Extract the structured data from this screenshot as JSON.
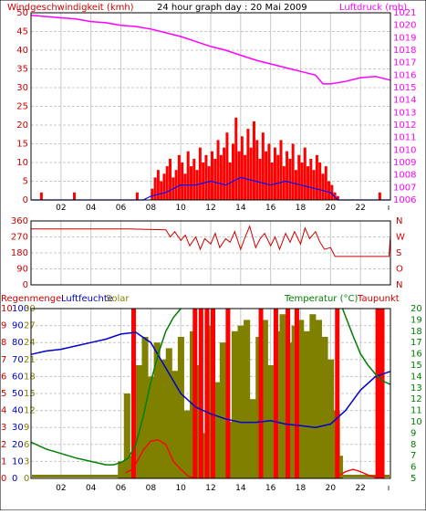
{
  "header": {
    "title_left": "Windgeschwindigkeit (kmh)",
    "title_center": "24 hour graph day : 20 Mai 2009",
    "title_right": "Luftdruck (mb)"
  },
  "middle_header": {},
  "bottom_header": {
    "regen": "Regenmenge",
    "feuchte": "Luftfeuchte",
    "solar": "Solar",
    "temp": "Temperatur (°C)",
    "taupunkt": "Taupunkt"
  },
  "colors": {
    "wind": "#ff0000",
    "gust_outline": "#0000ff",
    "pressure": "#ff00ff",
    "direction": "#cc0000",
    "rain": "#ff0000",
    "humidity": "#0000cc",
    "solar": "#808000",
    "temperature": "#008000",
    "dewpoint": "#ff0000",
    "grid": "#c8c8c8",
    "frame": "#000000"
  },
  "chart_data": [
    {
      "type": "bar",
      "name": "wind-pressure",
      "x_hours": [
        2,
        4,
        6,
        8,
        10,
        12,
        14,
        16,
        18,
        20,
        22
      ],
      "xtick_labels": [
        "02",
        "04",
        "06",
        "08",
        "10",
        "12",
        "14",
        "16",
        "18",
        "20",
        "22"
      ],
      "ylim_left": [
        0,
        50
      ],
      "yticks_left": [
        "0",
        "5",
        "10",
        "15",
        "20",
        "25",
        "30",
        "35",
        "40",
        "45",
        "50"
      ],
      "ylim_right": [
        1006,
        1021
      ],
      "yticks_right": [
        "1006",
        "1007",
        "1008",
        "1009",
        "1010",
        "1011",
        "1012",
        "1013",
        "1014",
        "1015",
        "1016",
        "1017",
        "1018",
        "1019",
        "1020",
        "1021"
      ],
      "pressure": {
        "hours": [
          0,
          1,
          2,
          3,
          4,
          5,
          6,
          7,
          8,
          9,
          10,
          11,
          12,
          13,
          14,
          15,
          16,
          17,
          18,
          19,
          19.5,
          20,
          21,
          22,
          23,
          24
        ],
        "values": [
          1020.8,
          1020.7,
          1020.6,
          1020.5,
          1020.3,
          1020.2,
          1020.0,
          1019.9,
          1019.7,
          1019.4,
          1019.1,
          1018.7,
          1018.3,
          1018.0,
          1017.6,
          1017.2,
          1016.9,
          1016.6,
          1016.3,
          1016.0,
          1015.3,
          1015.3,
          1015.5,
          1015.8,
          1015.9,
          1015.6
        ]
      },
      "wind_bars": {
        "hours": [
          0.6,
          2.8,
          7.0,
          8.0,
          8.2,
          8.4,
          8.6,
          8.8,
          9.0,
          9.2,
          9.4,
          9.6,
          9.8,
          10.0,
          10.2,
          10.4,
          10.6,
          10.8,
          11.0,
          11.2,
          11.4,
          11.6,
          11.8,
          12.0,
          12.2,
          12.4,
          12.6,
          12.8,
          13.0,
          13.2,
          13.4,
          13.6,
          13.8,
          14.0,
          14.2,
          14.4,
          14.6,
          14.8,
          15.0,
          15.2,
          15.4,
          15.6,
          15.8,
          16.0,
          16.2,
          16.4,
          16.6,
          16.8,
          17.0,
          17.2,
          17.4,
          17.6,
          17.8,
          18.0,
          18.2,
          18.4,
          18.6,
          18.8,
          19.0,
          19.2,
          19.4,
          19.6,
          19.8,
          20.0,
          20.2,
          20.4,
          23.2
        ],
        "values": [
          2,
          2,
          2,
          3,
          6,
          8,
          5,
          7,
          9,
          11,
          6,
          8,
          12,
          10,
          7,
          13,
          9,
          11,
          8,
          14,
          10,
          12,
          9,
          13,
          11,
          16,
          12,
          14,
          18,
          10,
          15,
          22,
          13,
          17,
          12,
          19,
          14,
          21,
          16,
          11,
          18,
          13,
          15,
          10,
          14,
          12,
          16,
          9,
          13,
          11,
          15,
          8,
          12,
          10,
          14,
          9,
          11,
          8,
          12,
          10,
          7,
          9,
          5,
          4,
          2,
          1,
          2
        ]
      },
      "gust_line": {
        "hours": [
          0,
          7.5,
          8,
          9,
          10,
          11,
          12,
          13,
          14,
          15,
          16,
          17,
          18,
          19,
          20,
          20.5,
          24
        ],
        "values": [
          0,
          0,
          1,
          2,
          4,
          4,
          5,
          4,
          6,
          5,
          4,
          5,
          4,
          3,
          2,
          0,
          0
        ]
      }
    },
    {
      "type": "line",
      "name": "wind-direction",
      "ylim": [
        0,
        360
      ],
      "yticks_left": [
        "0",
        "90",
        "180",
        "270",
        "360"
      ],
      "yticks_right": [
        "N",
        "O",
        "S",
        "W",
        "N"
      ],
      "hours": [
        0,
        6.5,
        9,
        9.3,
        9.6,
        10,
        10.3,
        10.6,
        11,
        11.3,
        11.6,
        12,
        12.3,
        12.6,
        13,
        13.3,
        13.6,
        14,
        14.3,
        14.6,
        15,
        15.3,
        15.6,
        16,
        16.3,
        16.6,
        17,
        17.3,
        17.6,
        18,
        18.3,
        18.6,
        19,
        19.3,
        19.6,
        20,
        20.3,
        23.9,
        24
      ],
      "values": [
        315,
        315,
        310,
        270,
        300,
        250,
        280,
        220,
        270,
        200,
        260,
        230,
        290,
        210,
        260,
        240,
        300,
        200,
        270,
        330,
        210,
        260,
        290,
        220,
        270,
        200,
        290,
        240,
        300,
        230,
        320,
        260,
        300,
        240,
        200,
        210,
        160,
        160,
        280
      ]
    },
    {
      "type": "area",
      "name": "rain-humidity-solar-temp",
      "ylim_rain": [
        0,
        10
      ],
      "yticks_rain": [
        "0",
        "1",
        "2",
        "3",
        "4",
        "5",
        "6",
        "7",
        "8",
        "9",
        "10"
      ],
      "ylim_humidity": [
        0,
        100
      ],
      "yticks_humidity": [
        "0",
        "10",
        "20",
        "30",
        "40",
        "50",
        "60",
        "70",
        "80",
        "90",
        "100"
      ],
      "yticks_solar": [
        "0",
        "3",
        "6",
        "9",
        "12",
        "15",
        "18",
        "21",
        "24",
        "27",
        "30"
      ],
      "ylim_temp": [
        5,
        20
      ],
      "yticks_temp": [
        "5",
        "6",
        "7",
        "8",
        "9",
        "10",
        "11",
        "12",
        "13",
        "14",
        "15",
        "16",
        "17",
        "18",
        "19",
        "20"
      ],
      "humidity": {
        "hours": [
          0,
          1,
          2,
          3,
          4,
          5,
          6,
          7,
          8,
          9,
          10,
          11,
          12,
          13,
          14,
          15,
          16,
          17,
          18,
          19,
          20,
          21,
          22,
          23,
          24
        ],
        "values": [
          73,
          75,
          76,
          78,
          80,
          82,
          85,
          86,
          80,
          65,
          50,
          42,
          38,
          35,
          33,
          33,
          34,
          32,
          31,
          30,
          32,
          40,
          52,
          60,
          63
        ]
      },
      "temperature": {
        "hours": [
          0,
          1,
          2,
          3,
          4,
          5,
          5.5,
          6,
          6.5,
          7,
          7.5,
          8,
          8.5,
          9,
          9.5,
          10
        ],
        "values": [
          8.2,
          7.6,
          7.2,
          6.8,
          6.5,
          6.2,
          6.2,
          6.4,
          6.8,
          8.0,
          10.5,
          13.5,
          16.0,
          18.0,
          19.2,
          20
        ]
      },
      "temperature_late": {
        "hours": [
          20.8,
          21.5,
          22,
          22.5,
          23,
          23.5,
          24
        ],
        "values": [
          20,
          17.6,
          16.0,
          15.0,
          14.2,
          13.6,
          13.3
        ]
      },
      "solar": {
        "hours": [
          5.8,
          6.2,
          6.6,
          7.0,
          7.4,
          7.8,
          8.2,
          8.6,
          9.0,
          9.4,
          9.8,
          10.2,
          10.6,
          11.0,
          11.4,
          11.8,
          12.2,
          12.6,
          13.0,
          13.4,
          13.8,
          14.2,
          14.6,
          15.0,
          15.4,
          15.8,
          16.2,
          16.6,
          17.0,
          17.4,
          17.8,
          18.2,
          18.6,
          19.0,
          19.4,
          19.8,
          20.2,
          20.4
        ],
        "values": [
          3,
          15,
          4,
          20,
          25,
          18,
          24,
          21,
          23,
          19,
          25,
          12,
          26,
          20,
          8,
          27,
          17,
          24,
          10,
          26,
          27,
          28,
          14,
          25,
          28,
          20,
          26,
          29,
          24,
          27,
          28,
          26,
          29,
          28,
          25,
          21,
          12,
          4
        ]
      },
      "rain_bars": {
        "hours": [
          6.7,
          10.8,
          11.2,
          11.6,
          12.0,
          13.0,
          15.2,
          16.2,
          17.0,
          17.6,
          20.3,
          23.0,
          23.3
        ],
        "values": [
          10,
          10,
          10,
          10,
          10,
          10,
          10,
          10,
          10,
          10,
          10,
          10,
          10
        ]
      },
      "dewpoint": {
        "hours": [
          6.3,
          6.8,
          7.5,
          8.0,
          8.5,
          9.0,
          9.5,
          10.0,
          10.5,
          11.0,
          20.5,
          21.0,
          21.5,
          22.0,
          22.5,
          23.0
        ],
        "values": [
          5.5,
          5.8,
          7.5,
          8.3,
          8.4,
          8.0,
          6.5,
          5.8,
          5.2,
          5.0,
          5.2,
          5.6,
          5.8,
          5.6,
          5.3,
          5.1
        ]
      }
    }
  ]
}
